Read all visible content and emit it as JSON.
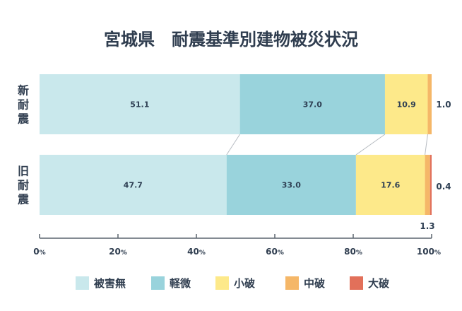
{
  "chart_data": {
    "type": "bar",
    "orientation": "horizontal",
    "stacked": true,
    "title": "宮城県　耐震基準別建物被災状況",
    "categories": [
      "新耐震",
      "旧耐震"
    ],
    "series": [
      {
        "name": "被害無",
        "values": [
          51.1,
          47.7
        ],
        "color": "#c9e8ec"
      },
      {
        "name": "軽微",
        "values": [
          37.0,
          33.0
        ],
        "color": "#99d3dc"
      },
      {
        "name": "小破",
        "values": [
          10.9,
          17.6
        ],
        "color": "#fde98a"
      },
      {
        "name": "中破",
        "values": [
          1.0,
          1.3
        ],
        "color": "#f5b768"
      },
      {
        "name": "大破",
        "values": [
          0.0,
          0.4
        ],
        "color": "#e2705a"
      }
    ],
    "data_labels": [
      [
        "51.1",
        "37.0",
        "10.9",
        "1.0",
        null
      ],
      [
        "47.7",
        "33.0",
        "17.6",
        "1.3",
        "0.4"
      ]
    ],
    "xlim": [
      0,
      100
    ],
    "xticks": [
      0,
      20,
      40,
      60,
      80,
      100
    ],
    "xtick_unit": "%",
    "legend_position": "bottom-center",
    "grid": false
  }
}
